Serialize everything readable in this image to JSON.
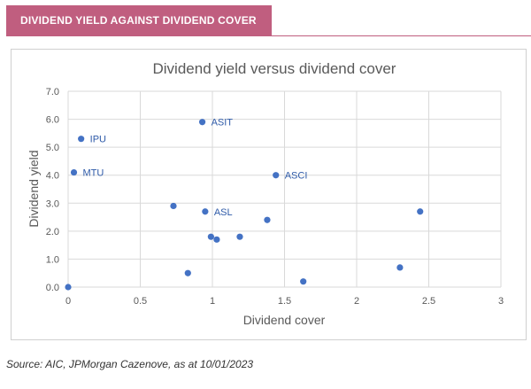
{
  "header": {
    "label": "DIVIDEND YIELD AGAINST DIVIDEND COVER"
  },
  "source": "Source: AIC, JPMorgan Cazenove, as at 10/01/2023",
  "colors": {
    "header_bg": "#c05e7f",
    "point": "#4472c4",
    "label": "#2e5aa8",
    "grid": "#d9d9d9"
  },
  "chart_data": {
    "type": "scatter",
    "title": "Dividend yield versus dividend cover",
    "xlabel": "Dividend cover",
    "ylabel": "Dividend yield",
    "xlim": [
      0,
      3
    ],
    "ylim": [
      0,
      7
    ],
    "x_ticks": [
      "0",
      "0.5",
      "1",
      "1.5",
      "2",
      "2.5",
      "3"
    ],
    "y_ticks": [
      "0.0",
      "1.0",
      "2.0",
      "3.0",
      "4.0",
      "5.0",
      "6.0",
      "7.0"
    ],
    "grid": true,
    "points": [
      {
        "x": 0.0,
        "y": 0.0,
        "label": ""
      },
      {
        "x": 0.09,
        "y": 5.3,
        "label": "IPU"
      },
      {
        "x": 0.04,
        "y": 4.1,
        "label": "MTU"
      },
      {
        "x": 0.93,
        "y": 5.9,
        "label": "ASIT"
      },
      {
        "x": 1.44,
        "y": 4.0,
        "label": "ASCI"
      },
      {
        "x": 0.95,
        "y": 2.7,
        "label": "ASL"
      },
      {
        "x": 0.73,
        "y": 2.9,
        "label": ""
      },
      {
        "x": 0.83,
        "y": 0.5,
        "label": ""
      },
      {
        "x": 0.99,
        "y": 1.8,
        "label": ""
      },
      {
        "x": 1.03,
        "y": 1.7,
        "label": ""
      },
      {
        "x": 1.19,
        "y": 1.8,
        "label": ""
      },
      {
        "x": 1.38,
        "y": 2.4,
        "label": ""
      },
      {
        "x": 1.63,
        "y": 0.2,
        "label": ""
      },
      {
        "x": 2.3,
        "y": 0.7,
        "label": ""
      },
      {
        "x": 2.44,
        "y": 2.7,
        "label": ""
      }
    ]
  }
}
